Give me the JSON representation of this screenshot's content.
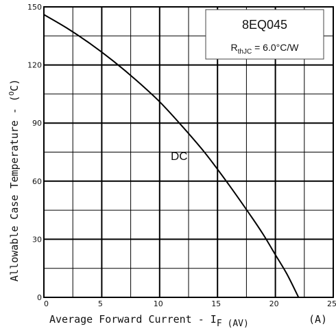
{
  "chart_data": {
    "type": "line",
    "title": "",
    "xlabel_main": "Average Forward Current  -  I",
    "xlabel_sub": "F (AV)",
    "xlabel_unit": "(A)",
    "ylabel": "Allowable Case Temperature  -  (",
    "ylabel_sup": "O",
    "ylabel_end": "C)",
    "xlim": [
      0,
      25
    ],
    "ylim": [
      0,
      150
    ],
    "xticks": [
      "0",
      "5",
      "10",
      "15",
      "20",
      "25"
    ],
    "yticks": [
      "0",
      "30",
      "60",
      "90",
      "120",
      "150"
    ],
    "grid": true,
    "legend": {
      "part": "8EQ045",
      "rth_prefix": "R",
      "rth_sub": "thJC",
      "rth_value": " = 6.0°C/W"
    },
    "series": [
      {
        "name": "DC",
        "x": [
          0,
          2,
          4,
          6,
          8,
          10,
          12,
          14,
          16,
          18,
          19,
          20,
          21,
          22
        ],
        "y": [
          146,
          139,
          131,
          122,
          112,
          101,
          88,
          74,
          58,
          41,
          32,
          22,
          12,
          0
        ]
      }
    ]
  }
}
